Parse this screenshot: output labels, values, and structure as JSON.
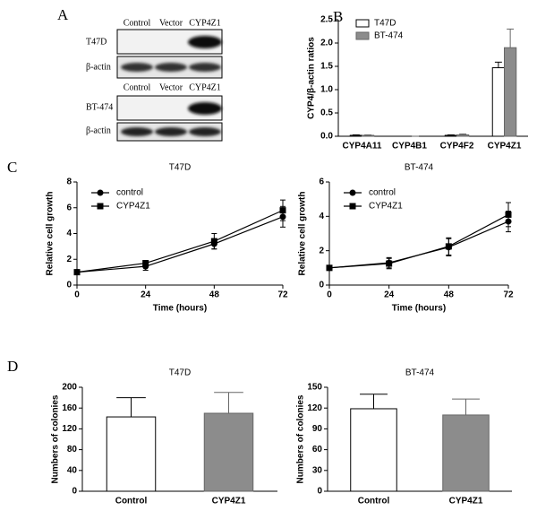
{
  "panel_letters": [
    "A",
    "B",
    "C",
    "D"
  ],
  "blots": [
    {
      "lanes": [
        "Control",
        "Vector",
        "CYP4Z1"
      ],
      "rows": [
        "T47D",
        "β-actin"
      ]
    },
    {
      "lanes": [
        "Control",
        "Vector",
        "CYP4Z1"
      ],
      "rows": [
        "BT-474",
        "β-actin"
      ]
    }
  ],
  "chart_data": [
    {
      "type": "bar",
      "ylabel": "CYP4/β-actin ratios",
      "categories": [
        "CYP4A11",
        "CYP4B1",
        "CYP4F2",
        "CYP4Z1"
      ],
      "series": [
        {
          "name": "T47D",
          "color": "#ffffff",
          "values": [
            0.02,
            0,
            0.02,
            1.47
          ],
          "errors": [
            0.01,
            0,
            0.01,
            0.12
          ]
        },
        {
          "name": "BT-474",
          "color": "#8c8c8c",
          "values": [
            0.02,
            0,
            0.03,
            1.9
          ],
          "errors": [
            0.01,
            0,
            0.02,
            0.4
          ]
        }
      ],
      "ylim": [
        0,
        2.5
      ],
      "yticks": [
        {
          "value": 0,
          "label": "0.0"
        },
        0.5,
        {
          "value": 1,
          "label": "1.0"
        },
        1.5,
        {
          "value": 2,
          "label": "2.0"
        },
        2.5
      ],
      "legend": "upper-left"
    },
    {
      "type": "line",
      "title": "T47D",
      "xlabel": "Time (hours)",
      "ylabel": "Relative cell growth",
      "x": [
        0,
        24,
        48,
        72
      ],
      "series": [
        {
          "name": "control",
          "color": "#000000",
          "marker": "circle",
          "values": [
            1,
            1.45,
            3.2,
            5.3
          ],
          "errors": [
            0.05,
            0.3,
            0.4,
            0.8
          ]
        },
        {
          "name": "CYP4Z1",
          "color": "#000000",
          "marker": "square",
          "values": [
            1,
            1.7,
            3.4,
            5.8
          ],
          "errors": [
            0.05,
            0.2,
            0.6,
            0.8
          ]
        }
      ],
      "xlim": [
        0,
        72
      ],
      "xticks": [
        0,
        24,
        48,
        72
      ],
      "ylim": [
        0,
        8
      ],
      "yticks": [
        0,
        2,
        4,
        6,
        8
      ],
      "legend": "upper-left"
    },
    {
      "type": "line",
      "title": "BT-474",
      "xlabel": "Time (hours)",
      "ylabel": "Relative cell growth",
      "x": [
        0,
        24,
        48,
        72
      ],
      "series": [
        {
          "name": "control",
          "color": "#000000",
          "marker": "circle",
          "values": [
            1,
            1.3,
            2.2,
            3.7
          ],
          "errors": [
            0.05,
            0.3,
            0.5,
            0.6
          ]
        },
        {
          "name": "CYP4Z1",
          "color": "#000000",
          "marker": "square",
          "values": [
            1,
            1.25,
            2.25,
            4.1
          ],
          "errors": [
            0.05,
            0.3,
            0.5,
            0.7
          ]
        }
      ],
      "xlim": [
        0,
        72
      ],
      "xticks": [
        0,
        24,
        48,
        72
      ],
      "ylim": [
        0,
        6
      ],
      "yticks": [
        0,
        2,
        4,
        6
      ],
      "legend": "upper-left"
    },
    {
      "type": "bar",
      "title": "T47D",
      "ylabel": "Numbers of colonies",
      "categories": [
        "Control",
        "CYP4Z1"
      ],
      "colors": [
        "#ffffff",
        "#8c8c8c"
      ],
      "series": [
        {
          "values": [
            143,
            150
          ],
          "errors": [
            37,
            40
          ]
        }
      ],
      "ylim": [
        0,
        200
      ],
      "yticks": [
        0,
        40,
        80,
        120,
        160,
        200
      ]
    },
    {
      "type": "bar",
      "title": "BT-474",
      "ylabel": "Numbers of colonies",
      "categories": [
        "Control",
        "CYP4Z1"
      ],
      "colors": [
        "#ffffff",
        "#8c8c8c"
      ],
      "series": [
        {
          "values": [
            119,
            110
          ],
          "errors": [
            21,
            23
          ]
        }
      ],
      "ylim": [
        0,
        150
      ],
      "yticks": [
        0,
        30,
        60,
        90,
        120,
        150
      ]
    }
  ]
}
